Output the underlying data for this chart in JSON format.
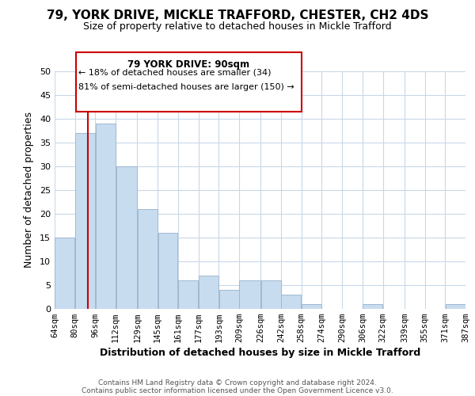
{
  "title_line1": "79, YORK DRIVE, MICKLE TRAFFORD, CHESTER, CH2 4DS",
  "title_line2": "Size of property relative to detached houses in Mickle Trafford",
  "xlabel": "Distribution of detached houses by size in Mickle Trafford",
  "ylabel": "Number of detached properties",
  "footer_line1": "Contains HM Land Registry data © Crown copyright and database right 2024.",
  "footer_line2": "Contains public sector information licensed under the Open Government Licence v3.0.",
  "annotation_title": "79 YORK DRIVE: 90sqm",
  "annotation_line1": "← 18% of detached houses are smaller (34)",
  "annotation_line2": "81% of semi-detached houses are larger (150) →",
  "bar_color": "#c8dcf0",
  "bar_edge_color": "#a0b8d0",
  "vline_x": 90,
  "vline_color": "#cc0000",
  "bins": [
    64,
    80,
    96,
    112,
    129,
    145,
    161,
    177,
    193,
    209,
    226,
    242,
    258,
    274,
    290,
    306,
    322,
    339,
    355,
    371,
    387
  ],
  "counts": [
    15,
    37,
    39,
    30,
    21,
    16,
    6,
    7,
    4,
    6,
    6,
    3,
    1,
    0,
    0,
    1,
    0,
    0,
    0,
    1,
    0
  ],
  "ylim": [
    0,
    50
  ],
  "yticks": [
    0,
    5,
    10,
    15,
    20,
    25,
    30,
    35,
    40,
    45,
    50
  ],
  "xtick_labels": [
    "64sqm",
    "80sqm",
    "96sqm",
    "112sqm",
    "129sqm",
    "145sqm",
    "161sqm",
    "177sqm",
    "193sqm",
    "209sqm",
    "226sqm",
    "242sqm",
    "258sqm",
    "274sqm",
    "290sqm",
    "306sqm",
    "322sqm",
    "339sqm",
    "355sqm",
    "371sqm",
    "387sqm"
  ],
  "background_color": "#ffffff",
  "grid_color": "#c8d8e8",
  "annotation_box_color": "#ffffff",
  "annotation_box_edge": "#cc0000",
  "title1_fontsize": 11,
  "title2_fontsize": 9,
  "xlabel_fontsize": 9,
  "ylabel_fontsize": 9
}
